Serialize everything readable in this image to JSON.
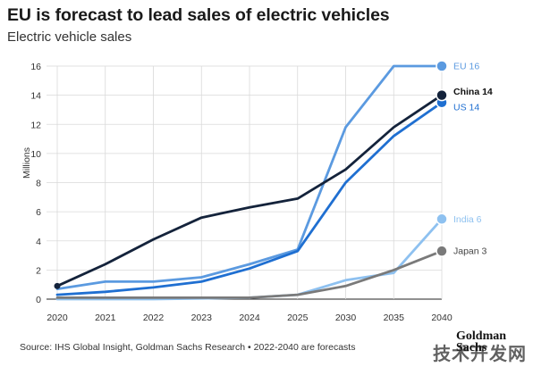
{
  "header": {
    "title": "EU is forecast to lead sales of electric vehicles",
    "subtitle": "Electric vehicle sales"
  },
  "footer": {
    "source": "Source: IHS Global Insight, Goldman Sachs Research • 2022-2040 are forecasts",
    "logo": "Goldman Sachs",
    "watermark": "技术开发网"
  },
  "colors": {
    "EU": "#5b9ae0",
    "China": "#14233b",
    "US": "#1f6fd1",
    "India": "#8ec1f0",
    "Japan": "#7a7a7a",
    "grid": "#d9d9d9",
    "axis": "#222222"
  },
  "chart_data": {
    "type": "line",
    "title": "EU is forecast to lead sales of electric vehicles",
    "subtitle": "Electric vehicle sales",
    "ylabel": "Millions",
    "xlabel": "",
    "categories": [
      "2020",
      "2021",
      "2022",
      "2023",
      "2024",
      "2025",
      "2030",
      "2035",
      "2040"
    ],
    "ylim": [
      0,
      16
    ],
    "yticks": [
      0,
      2,
      4,
      6,
      8,
      10,
      12,
      14,
      16
    ],
    "grid": true,
    "legend": "end-labels",
    "series": [
      {
        "name": "EU",
        "end_label": "EU 16",
        "values": [
          0.7,
          1.2,
          1.2,
          1.5,
          2.4,
          3.4,
          11.8,
          16.0,
          16.0
        ]
      },
      {
        "name": "China",
        "end_label": "China 14",
        "values": [
          0.9,
          2.4,
          4.1,
          5.6,
          6.3,
          6.9,
          8.9,
          11.8,
          14.0
        ]
      },
      {
        "name": "US",
        "end_label": "US 14",
        "values": [
          0.3,
          0.5,
          0.8,
          1.2,
          2.1,
          3.3,
          8.0,
          11.2,
          13.5
        ]
      },
      {
        "name": "India",
        "end_label": "India 6",
        "values": [
          0.0,
          0.0,
          0.0,
          0.05,
          0.1,
          0.3,
          1.3,
          1.8,
          5.5
        ]
      },
      {
        "name": "Japan",
        "end_label": "Japan 3",
        "values": [
          0.1,
          0.1,
          0.1,
          0.1,
          0.1,
          0.3,
          0.9,
          2.0,
          3.3
        ]
      }
    ]
  }
}
